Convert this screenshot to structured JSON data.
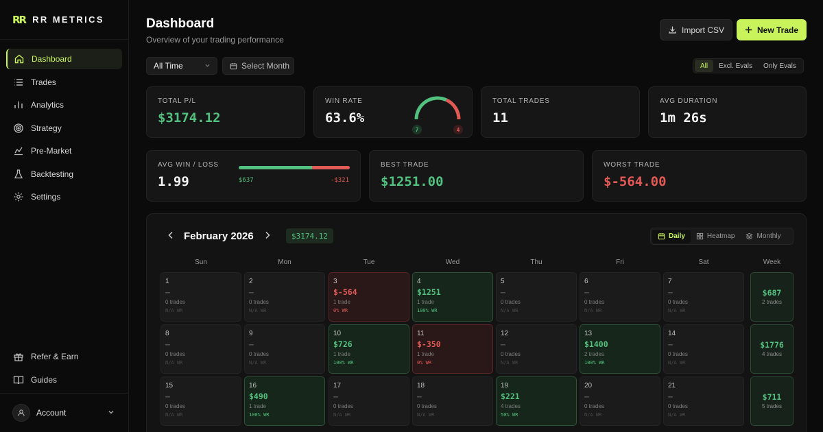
{
  "brand": {
    "logo": "RR",
    "name": "RR METRICS"
  },
  "sidebar": {
    "items": [
      {
        "label": "Dashboard",
        "icon": "home-icon",
        "active": true
      },
      {
        "label": "Trades",
        "icon": "list-icon"
      },
      {
        "label": "Analytics",
        "icon": "bar-chart-icon"
      },
      {
        "label": "Strategy",
        "icon": "target-icon"
      },
      {
        "label": "Pre-Market",
        "icon": "chart-pulse-icon"
      },
      {
        "label": "Backtesting",
        "icon": "flask-icon"
      },
      {
        "label": "Settings",
        "icon": "gear-icon"
      }
    ],
    "bottom_items": [
      {
        "label": "Refer & Earn",
        "icon": "gift-icon"
      },
      {
        "label": "Guides",
        "icon": "book-icon"
      }
    ],
    "account_label": "Account"
  },
  "header": {
    "title": "Dashboard",
    "subtitle": "Overview of your trading performance",
    "import_label": "Import CSV",
    "new_trade_label": "New Trade"
  },
  "filters": {
    "time_range": "All Time",
    "month_placeholder": "Select Month",
    "segments": [
      "All",
      "Excl. Evals",
      "Only Evals"
    ],
    "active_segment": "All"
  },
  "stats": {
    "total_pl": {
      "label": "TOTAL P/L",
      "value": "$3174.12"
    },
    "win_rate": {
      "label": "WIN RATE",
      "value": "63.6%",
      "wins": "7",
      "losses": "4",
      "win_fraction": 0.636
    },
    "total_trades": {
      "label": "TOTAL TRADES",
      "value": "11"
    },
    "avg_duration": {
      "label": "AVG DURATION",
      "value": "1m 26s"
    },
    "avg_win_loss": {
      "label": "AVG WIN / LOSS",
      "value": "1.99",
      "avg_win": "$637",
      "avg_loss": "-$321",
      "win_fraction": 0.66
    },
    "best_trade": {
      "label": "BEST TRADE",
      "value": "$1251.00"
    },
    "worst_trade": {
      "label": "WORST TRADE",
      "value": "$-564.00"
    }
  },
  "calendar": {
    "month": "February 2026",
    "total": "$3174.12",
    "views": [
      "Daily",
      "Heatmap",
      "Monthly"
    ],
    "active_view": "Daily",
    "weekdays": [
      "Sun",
      "Mon",
      "Tue",
      "Wed",
      "Thu",
      "Fri",
      "Sat",
      "Week"
    ],
    "weeks": [
      {
        "days": [
          {
            "n": "1",
            "pnl": "—",
            "trades": "0 trades",
            "wr": "N/A WR",
            "status": "none"
          },
          {
            "n": "2",
            "pnl": "—",
            "trades": "0 trades",
            "wr": "N/A WR",
            "status": "none"
          },
          {
            "n": "3",
            "pnl": "$-564",
            "trades": "1 trade",
            "wr": "0% WR",
            "status": "loss"
          },
          {
            "n": "4",
            "pnl": "$1251",
            "trades": "1 trade",
            "wr": "100% WR",
            "status": "win"
          },
          {
            "n": "5",
            "pnl": "—",
            "trades": "0 trades",
            "wr": "N/A WR",
            "status": "none"
          },
          {
            "n": "6",
            "pnl": "—",
            "trades": "0 trades",
            "wr": "N/A WR",
            "status": "none"
          },
          {
            "n": "7",
            "pnl": "—",
            "trades": "0 trades",
            "wr": "N/A WR",
            "status": "none"
          }
        ],
        "week": {
          "pnl": "$687",
          "trades": "2 trades"
        }
      },
      {
        "days": [
          {
            "n": "8",
            "pnl": "—",
            "trades": "0 trades",
            "wr": "N/A WR",
            "status": "none"
          },
          {
            "n": "9",
            "pnl": "—",
            "trades": "0 trades",
            "wr": "N/A WR",
            "status": "none"
          },
          {
            "n": "10",
            "pnl": "$726",
            "trades": "1 trade",
            "wr": "100% WR",
            "status": "win"
          },
          {
            "n": "11",
            "pnl": "$-350",
            "trades": "1 trade",
            "wr": "0% WR",
            "status": "loss"
          },
          {
            "n": "12",
            "pnl": "—",
            "trades": "0 trades",
            "wr": "N/A WR",
            "status": "none"
          },
          {
            "n": "13",
            "pnl": "$1400",
            "trades": "2 trades",
            "wr": "100% WR",
            "status": "win"
          },
          {
            "n": "14",
            "pnl": "—",
            "trades": "0 trades",
            "wr": "N/A WR",
            "status": "none"
          }
        ],
        "week": {
          "pnl": "$1776",
          "trades": "4 trades"
        }
      },
      {
        "days": [
          {
            "n": "15",
            "pnl": "—",
            "trades": "0 trades",
            "wr": "N/A WR",
            "status": "none"
          },
          {
            "n": "16",
            "pnl": "$490",
            "trades": "1 trade",
            "wr": "100% WR",
            "status": "win"
          },
          {
            "n": "17",
            "pnl": "—",
            "trades": "0 trades",
            "wr": "N/A WR",
            "status": "none"
          },
          {
            "n": "18",
            "pnl": "—",
            "trades": "0 trades",
            "wr": "N/A WR",
            "status": "none"
          },
          {
            "n": "19",
            "pnl": "$221",
            "trades": "4 trades",
            "wr": "50% WR",
            "status": "win"
          },
          {
            "n": "20",
            "pnl": "—",
            "trades": "0 trades",
            "wr": "N/A WR",
            "status": "none"
          },
          {
            "n": "21",
            "pnl": "—",
            "trades": "0 trades",
            "wr": "N/A WR",
            "status": "none"
          }
        ],
        "week": {
          "pnl": "$711",
          "trades": "5 trades"
        }
      }
    ]
  },
  "colors": {
    "accent": "#c8f35b",
    "profit": "#52c07e",
    "loss": "#e25a56",
    "background": "#0b0b0b"
  }
}
